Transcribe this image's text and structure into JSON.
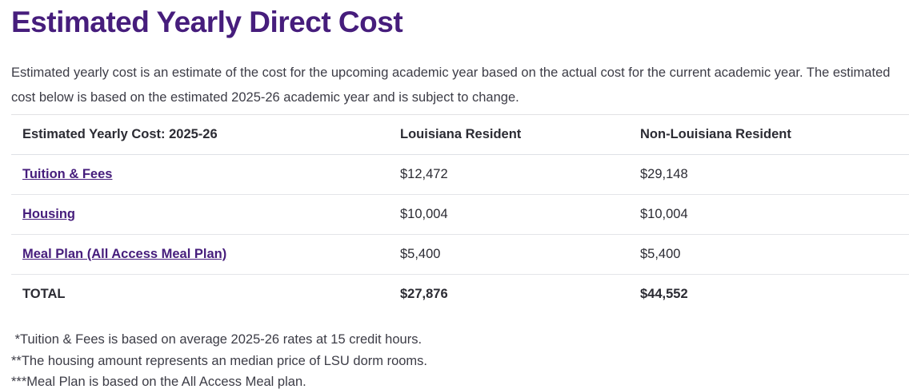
{
  "page": {
    "title": "Estimated Yearly Direct Cost",
    "intro": "Estimated yearly cost is an estimate of the cost for the upcoming academic year based on the actual cost for the current academic year. The estimated cost below is based on the estimated 2025-26 academic year and is subject to change."
  },
  "table": {
    "headers": [
      "Estimated Yearly Cost: 2025-26",
      "Louisiana Resident",
      "Non-Louisiana Resident"
    ],
    "rows": [
      {
        "label": "Tuition & Fees",
        "louisiana_resident": "$12,472",
        "non_louisiana_resident": "$29,148",
        "is_link": true,
        "is_total": false
      },
      {
        "label": "Housing",
        "louisiana_resident": "$10,004",
        "non_louisiana_resident": "$10,004",
        "is_link": true,
        "is_total": false
      },
      {
        "label": "Meal Plan (All Access Meal Plan)",
        "louisiana_resident": "$5,400",
        "non_louisiana_resident": "$5,400",
        "is_link": true,
        "is_total": false
      },
      {
        "label": "TOTAL",
        "louisiana_resident": "$27,876",
        "non_louisiana_resident": "$44,552",
        "is_link": false,
        "is_total": true
      }
    ]
  },
  "footnotes": [
    " *Tuition & Fees is based on average 2025-26 rates at 15 credit hours.",
    "**The housing amount represents an median price of LSU dorm rooms.",
    "***Meal Plan is based on the All Access Meal plan."
  ],
  "colors": {
    "heading_purple": "#461D7C",
    "link_purple": "#461D7C",
    "body_text": "#3C3C46",
    "table_text": "#2B2B33",
    "divider": "#E4E5E9"
  }
}
